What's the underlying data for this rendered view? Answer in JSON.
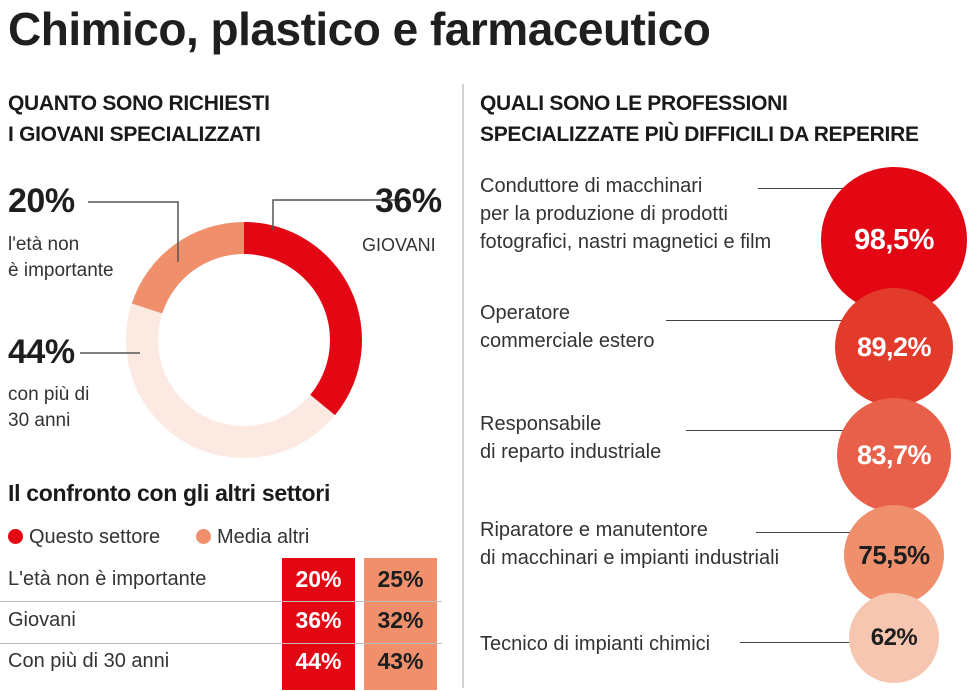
{
  "title": "Chimico, plastico e farmaceutico",
  "left_heading": "QUANTO SONO RICHIESTI\nI GIOVANI SPECIALIZZATI",
  "right_heading": "QUALI SONO LE PROFESSIONI\nSPECIALIZZATE PIÙ DIFFICILI DA REPERIRE",
  "colors": {
    "red": "#e30613",
    "orange": "#ef8f6c",
    "pale": "#fce9e1",
    "dark_red": "#e23b2c",
    "mid_red": "#e8604a"
  },
  "donut": {
    "segments": [
      {
        "pct": "36%",
        "caption": "GIOVANI"
      },
      {
        "pct": "44%",
        "caption": "con più di\n30 anni"
      },
      {
        "pct": "20%",
        "caption": "l'età non\nè importante"
      }
    ]
  },
  "comparison": {
    "title": "Il confronto con gli altri settori",
    "legend": [
      "Questo settore",
      "Media altri"
    ],
    "rows": [
      {
        "label": "L'età non è importante",
        "this": "20%",
        "others": "25%"
      },
      {
        "label": "Giovani",
        "this": "36%",
        "others": "32%"
      },
      {
        "label": "Con più di 30 anni",
        "this": "44%",
        "others": "43%"
      }
    ]
  },
  "professions": [
    {
      "label": "Conduttore di macchinari\nper la produzione di prodotti\nfotografici, nastri magnetici e film",
      "value": "98,5%"
    },
    {
      "label": "Operatore\ncommerciale estero",
      "value": "89,2%"
    },
    {
      "label": "Responsabile\ndi reparto industriale",
      "value": "83,7%"
    },
    {
      "label": "Riparatore e manutentore\ndi macchinari e impianti industriali",
      "value": "75,5%"
    },
    {
      "label": "Tecnico di impianti chimici",
      "value": "62%"
    }
  ],
  "chart_data": [
    {
      "type": "pie",
      "categories": [
        "Giovani",
        "Con più di 30 anni",
        "L'età non è importante"
      ],
      "values": [
        36,
        44,
        20
      ],
      "colors": [
        "#e30613",
        "#fce9e1",
        "#ef8f6c"
      ]
    },
    {
      "type": "table",
      "title": "Il confronto con gli altri settori",
      "categories": [
        "L'età non è importante",
        "Giovani",
        "Con più di 30 anni"
      ],
      "series": [
        {
          "name": "Questo settore",
          "values": [
            20,
            36,
            44
          ]
        },
        {
          "name": "Media altri",
          "values": [
            25,
            32,
            43
          ]
        }
      ]
    },
    {
      "type": "bar",
      "title": "QUALI SONO LE PROFESSIONI SPECIALIZZATE PIÙ DIFFICILI DA REPERIRE",
      "categories": [
        "Conduttore di macchinari per la produzione di prodotti fotografici, nastri magnetici e film",
        "Operatore commerciale estero",
        "Responsabile di reparto industriale",
        "Riparatore e manutentore di macchinari e impianti industriali",
        "Tecnico di impianti chimici"
      ],
      "values": [
        98.5,
        89.2,
        83.7,
        75.5,
        62
      ]
    }
  ]
}
